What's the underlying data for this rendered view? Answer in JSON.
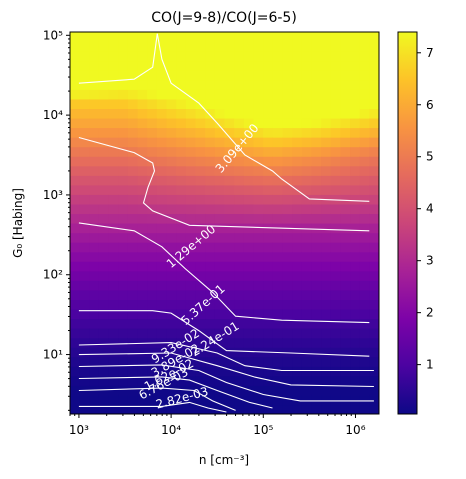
{
  "chart_data": {
    "type": "heatmap",
    "title": "CO(J=9-8)/CO(J=6-5)",
    "xlabel": "n [cm⁻³]",
    "ylabel": "G₀ [Habing]",
    "x_scale": "log",
    "y_scale": "log",
    "xlim": [
      800,
      1800000
    ],
    "ylim": [
      1.8,
      110000
    ],
    "x_ticks": [
      {
        "value": 1000,
        "label": "10³"
      },
      {
        "value": 10000,
        "label": "10⁴"
      },
      {
        "value": 100000,
        "label": "10⁵"
      },
      {
        "value": 1000000,
        "label": "10⁶"
      }
    ],
    "y_ticks": [
      {
        "value": 10,
        "label": "10¹"
      },
      {
        "value": 100,
        "label": "10²"
      },
      {
        "value": 1000,
        "label": "10³"
      },
      {
        "value": 10000,
        "label": "10⁴"
      },
      {
        "value": 100000,
        "label": "10⁵"
      }
    ],
    "colormap": "plasma",
    "colorbar": {
      "min": 0.05,
      "max": 7.4,
      "ticks": [
        1,
        2,
        3,
        4,
        5,
        6,
        7
      ],
      "tick_labels": [
        "1",
        "2",
        "3",
        "4",
        "5",
        "6",
        "7"
      ]
    },
    "contour_levels": [
      {
        "value": 0.00282,
        "label": "2.82e-03"
      },
      {
        "value": 0.00676,
        "label": "6.76e-03"
      },
      {
        "value": 0.0162,
        "label": "1.62e-02"
      },
      {
        "value": 0.0389,
        "label": "3.89e-02"
      },
      {
        "value": 0.0933,
        "label": "9.33e-02"
      },
      {
        "value": 0.224,
        "label": "2.24e-01"
      },
      {
        "value": 0.537,
        "label": "5.37e-01"
      },
      {
        "value": 1.29,
        "label": "1.29e+00"
      },
      {
        "value": 3.09,
        "label": "3.09e+00"
      }
    ]
  }
}
